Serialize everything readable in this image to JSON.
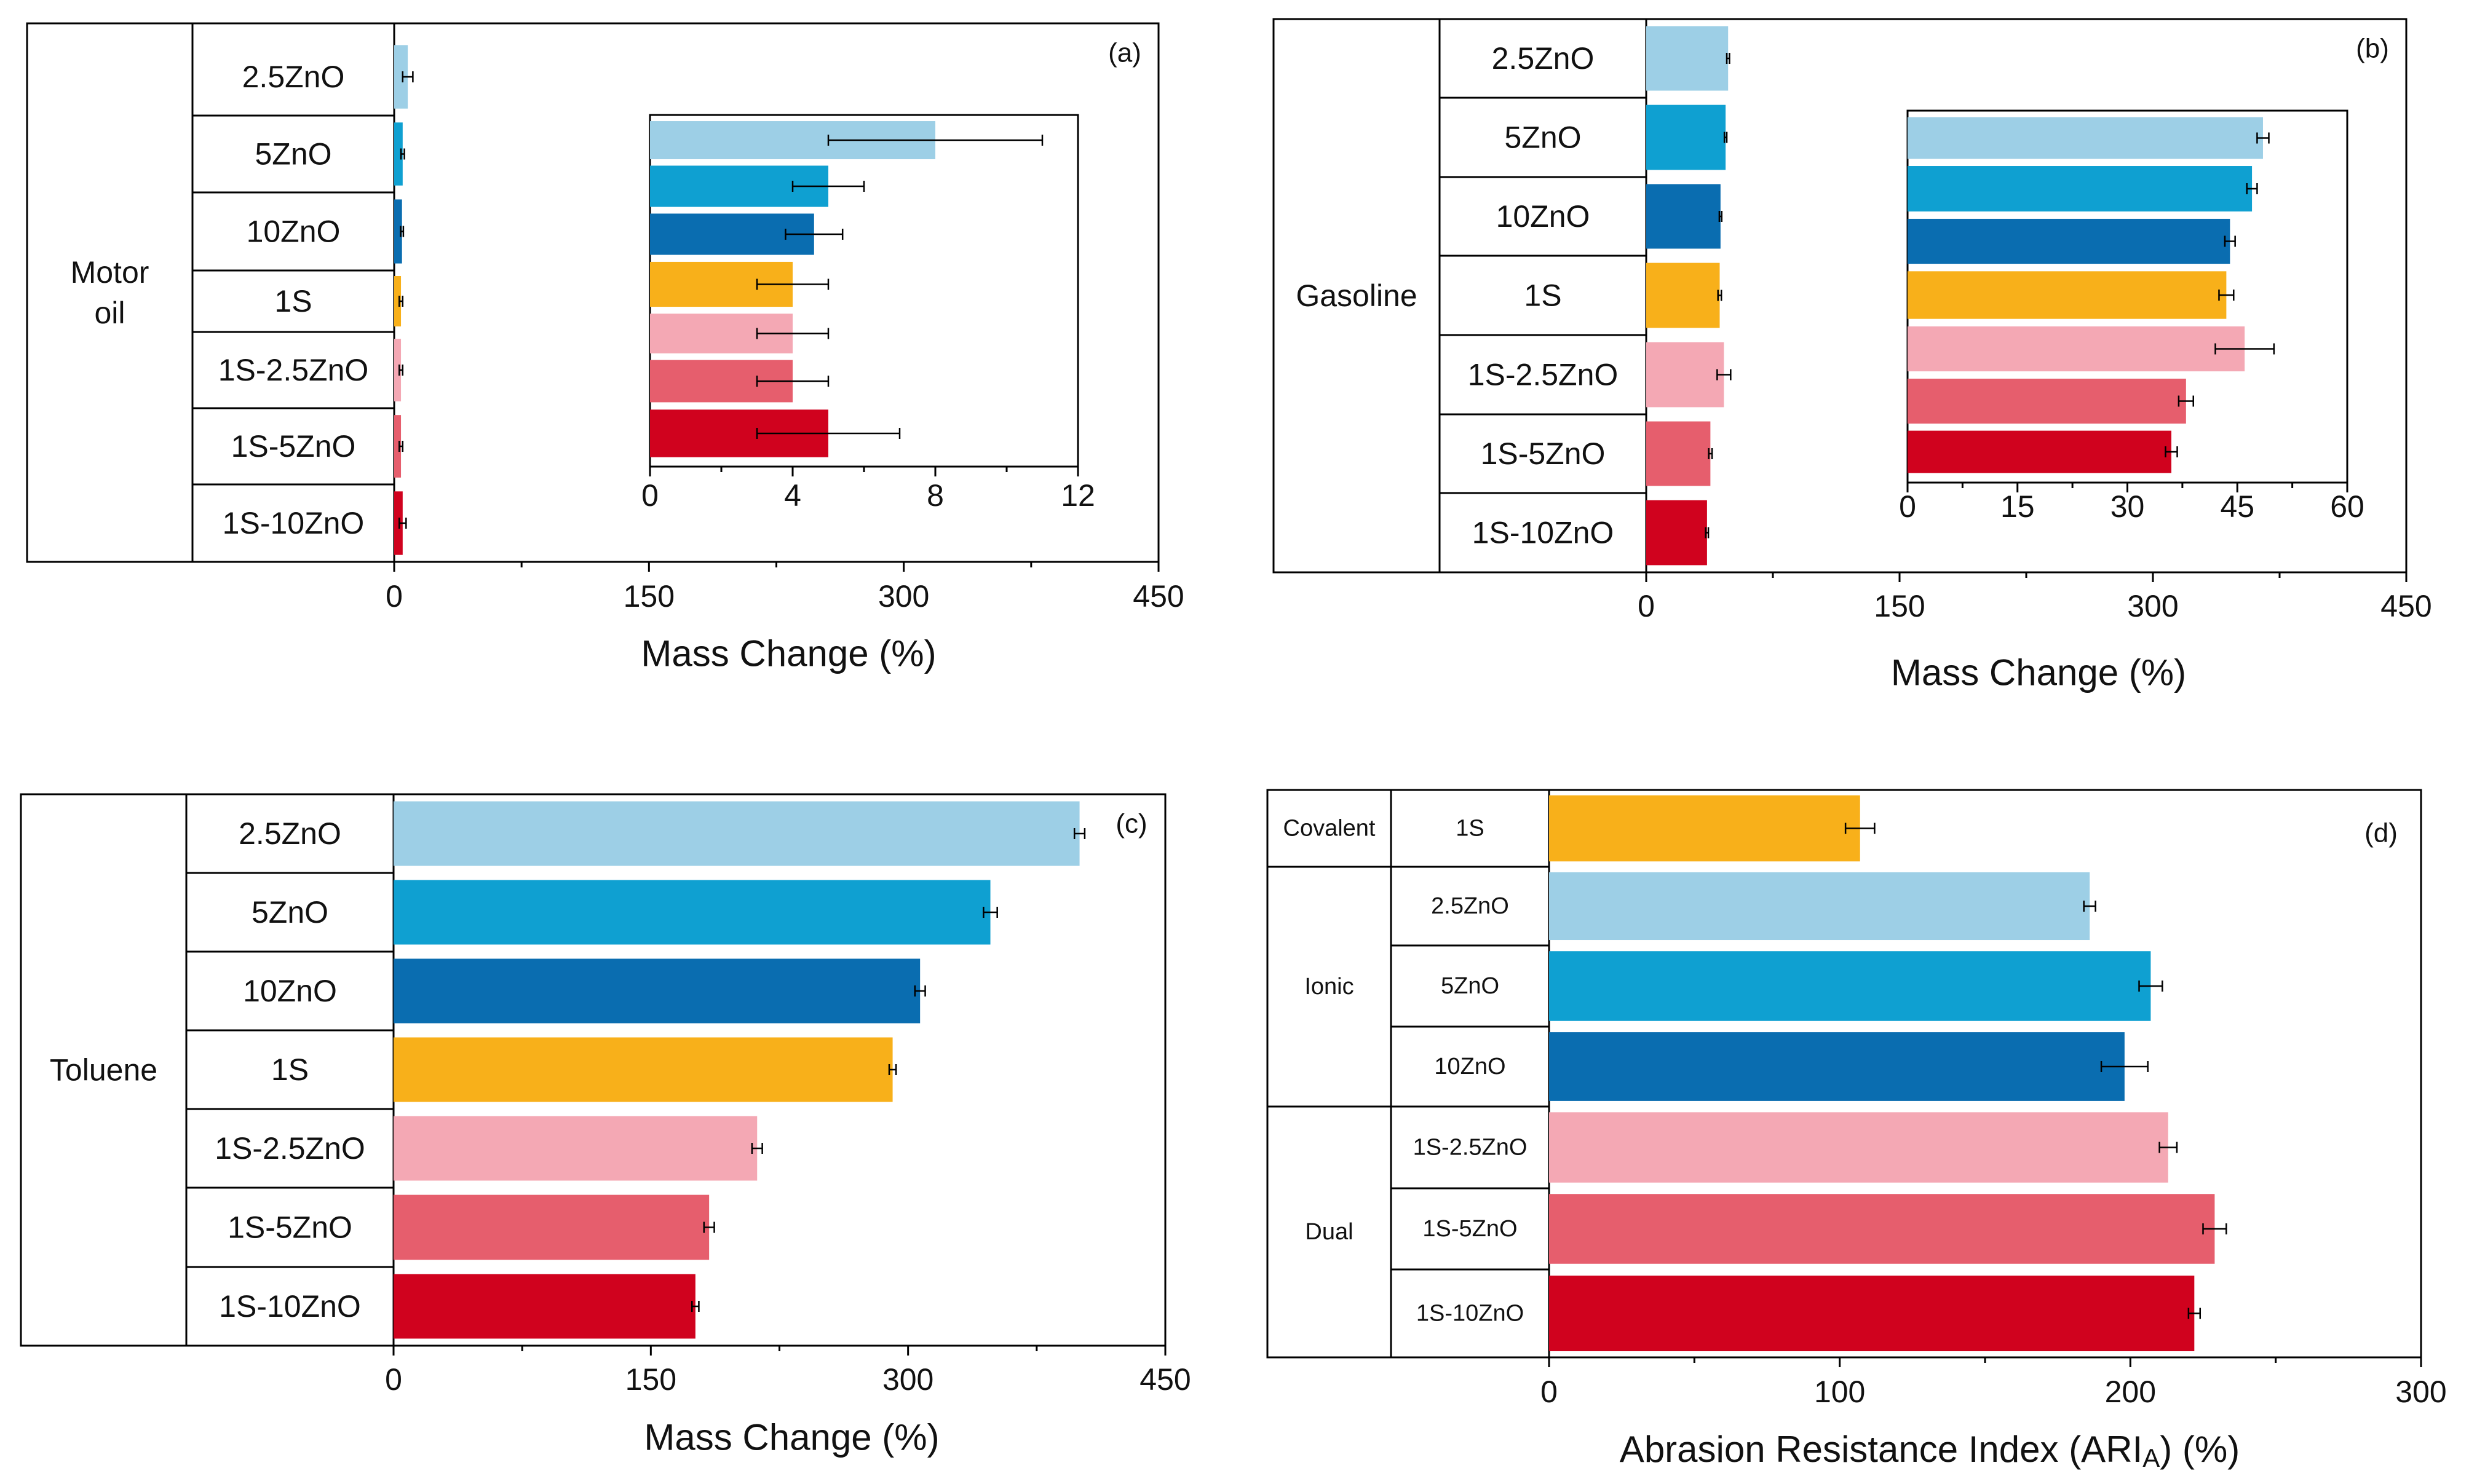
{
  "chart_data": [
    {
      "panel": "(a)",
      "type": "bar",
      "orientation": "horizontal",
      "group_label_lines": [
        "Motor",
        "oil"
      ],
      "categories": [
        "2.5ZnO",
        "5ZnO",
        "10ZnO",
        "1S",
        "1S-2.5ZnO",
        "1S-5ZnO",
        "1S-10ZnO"
      ],
      "values": [
        8,
        5,
        4.6,
        4,
        4,
        4,
        5
      ],
      "errors": [
        3,
        1,
        0.8,
        1,
        1,
        1,
        2
      ],
      "xlabel": "Mass Change (%)",
      "xlim": [
        0,
        450
      ],
      "xticks": [
        "0",
        "150",
        "300",
        "450"
      ],
      "inset": {
        "xlim": [
          0,
          12
        ],
        "xticks": [
          "0",
          "4",
          "8",
          "12"
        ],
        "values": [
          8,
          5,
          4.6,
          4,
          4,
          4,
          5
        ],
        "errors": [
          3,
          1,
          0.8,
          1,
          1,
          1,
          2
        ]
      }
    },
    {
      "panel": "(b)",
      "type": "bar",
      "orientation": "horizontal",
      "group_label_lines": [
        "Gasoline"
      ],
      "categories": [
        "2.5ZnO",
        "5ZnO",
        "10ZnO",
        "1S",
        "1S-2.5ZnO",
        "1S-5ZnO",
        "1S-10ZnO"
      ],
      "values": [
        48.5,
        47,
        44,
        43.5,
        46,
        38,
        36
      ],
      "errors": [
        0.8,
        0.7,
        0.7,
        1,
        4,
        1,
        0.8
      ],
      "xlabel": "Mass Change (%)",
      "xlim": [
        0,
        450
      ],
      "xticks": [
        "0",
        "150",
        "300",
        "450"
      ],
      "inset": {
        "xlim": [
          0,
          60
        ],
        "xticks": [
          "0",
          "15",
          "30",
          "45",
          "60"
        ],
        "values": [
          48.5,
          47,
          44,
          43.5,
          46,
          38,
          36
        ],
        "errors": [
          0.8,
          0.7,
          0.7,
          1,
          4,
          1,
          0.8
        ]
      }
    },
    {
      "panel": "(c)",
      "type": "bar",
      "orientation": "horizontal",
      "group_label_lines": [
        "Toluene"
      ],
      "categories": [
        "2.5ZnO",
        "5ZnO",
        "10ZnO",
        "1S",
        "1S-2.5ZnO",
        "1S-5ZnO",
        "1S-10ZnO"
      ],
      "values": [
        400,
        348,
        307,
        291,
        212,
        184,
        176
      ],
      "errors": [
        3,
        4,
        3,
        2,
        3,
        3,
        2
      ],
      "xlabel": "Mass Change (%)",
      "xlim": [
        0,
        450
      ],
      "xticks": [
        "0",
        "150",
        "300",
        "450"
      ]
    },
    {
      "panel": "(d)",
      "type": "bar",
      "orientation": "horizontal",
      "groups": [
        {
          "label": "Covalent",
          "size": 1
        },
        {
          "label": "Ionic",
          "size": 3
        },
        {
          "label": "Dual",
          "size": 3
        }
      ],
      "categories": [
        "1S",
        "2.5ZnO",
        "5ZnO",
        "10ZnO",
        "1S-2.5ZnO",
        "1S-5ZnO",
        "1S-10ZnO"
      ],
      "values": [
        107,
        186,
        207,
        198,
        213,
        229,
        222
      ],
      "errors": [
        5,
        2,
        4,
        8,
        3,
        4,
        2
      ],
      "xlabel_main": "Abrasion Resistance Index (ARI",
      "xlabel_sub": "A",
      "xlabel_end": ") (%)",
      "xlim": [
        0,
        300
      ],
      "xticks": [
        "0",
        "100",
        "200",
        "300"
      ]
    }
  ],
  "colors": {
    "2.5ZnO": "#9dcfe6",
    "5ZnO": "#0fa0d1",
    "10ZnO": "#0a6db0",
    "1S": "#f8b01a",
    "1S-2.5ZnO": "#f4a8b4",
    "1S-5ZnO": "#e65e6d",
    "1S-10ZnO": "#d0021e"
  }
}
